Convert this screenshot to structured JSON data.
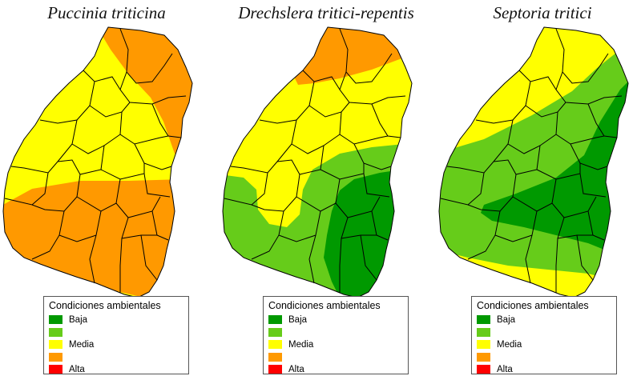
{
  "legend_title": "Condiciones ambientales",
  "legend_items": [
    {
      "label": "Baja",
      "color": "#009900"
    },
    {
      "label": "",
      "color": "#66cc1a"
    },
    {
      "label": "Media",
      "color": "#ffff00"
    },
    {
      "label": "",
      "color": "#ff9900"
    },
    {
      "label": "Alta",
      "color": "#ff0000"
    }
  ],
  "maps": [
    {
      "title": "Puccinia triticina",
      "levels": [
        "Media",
        "Alto-medio"
      ]
    },
    {
      "title": "Drechslera tritici-repentis",
      "levels": [
        "Alto-medio",
        "Media",
        "Bajo-medio",
        "Baja"
      ]
    },
    {
      "title": "Septoria tritici",
      "levels": [
        "Media",
        "Bajo-medio",
        "Baja"
      ]
    }
  ]
}
